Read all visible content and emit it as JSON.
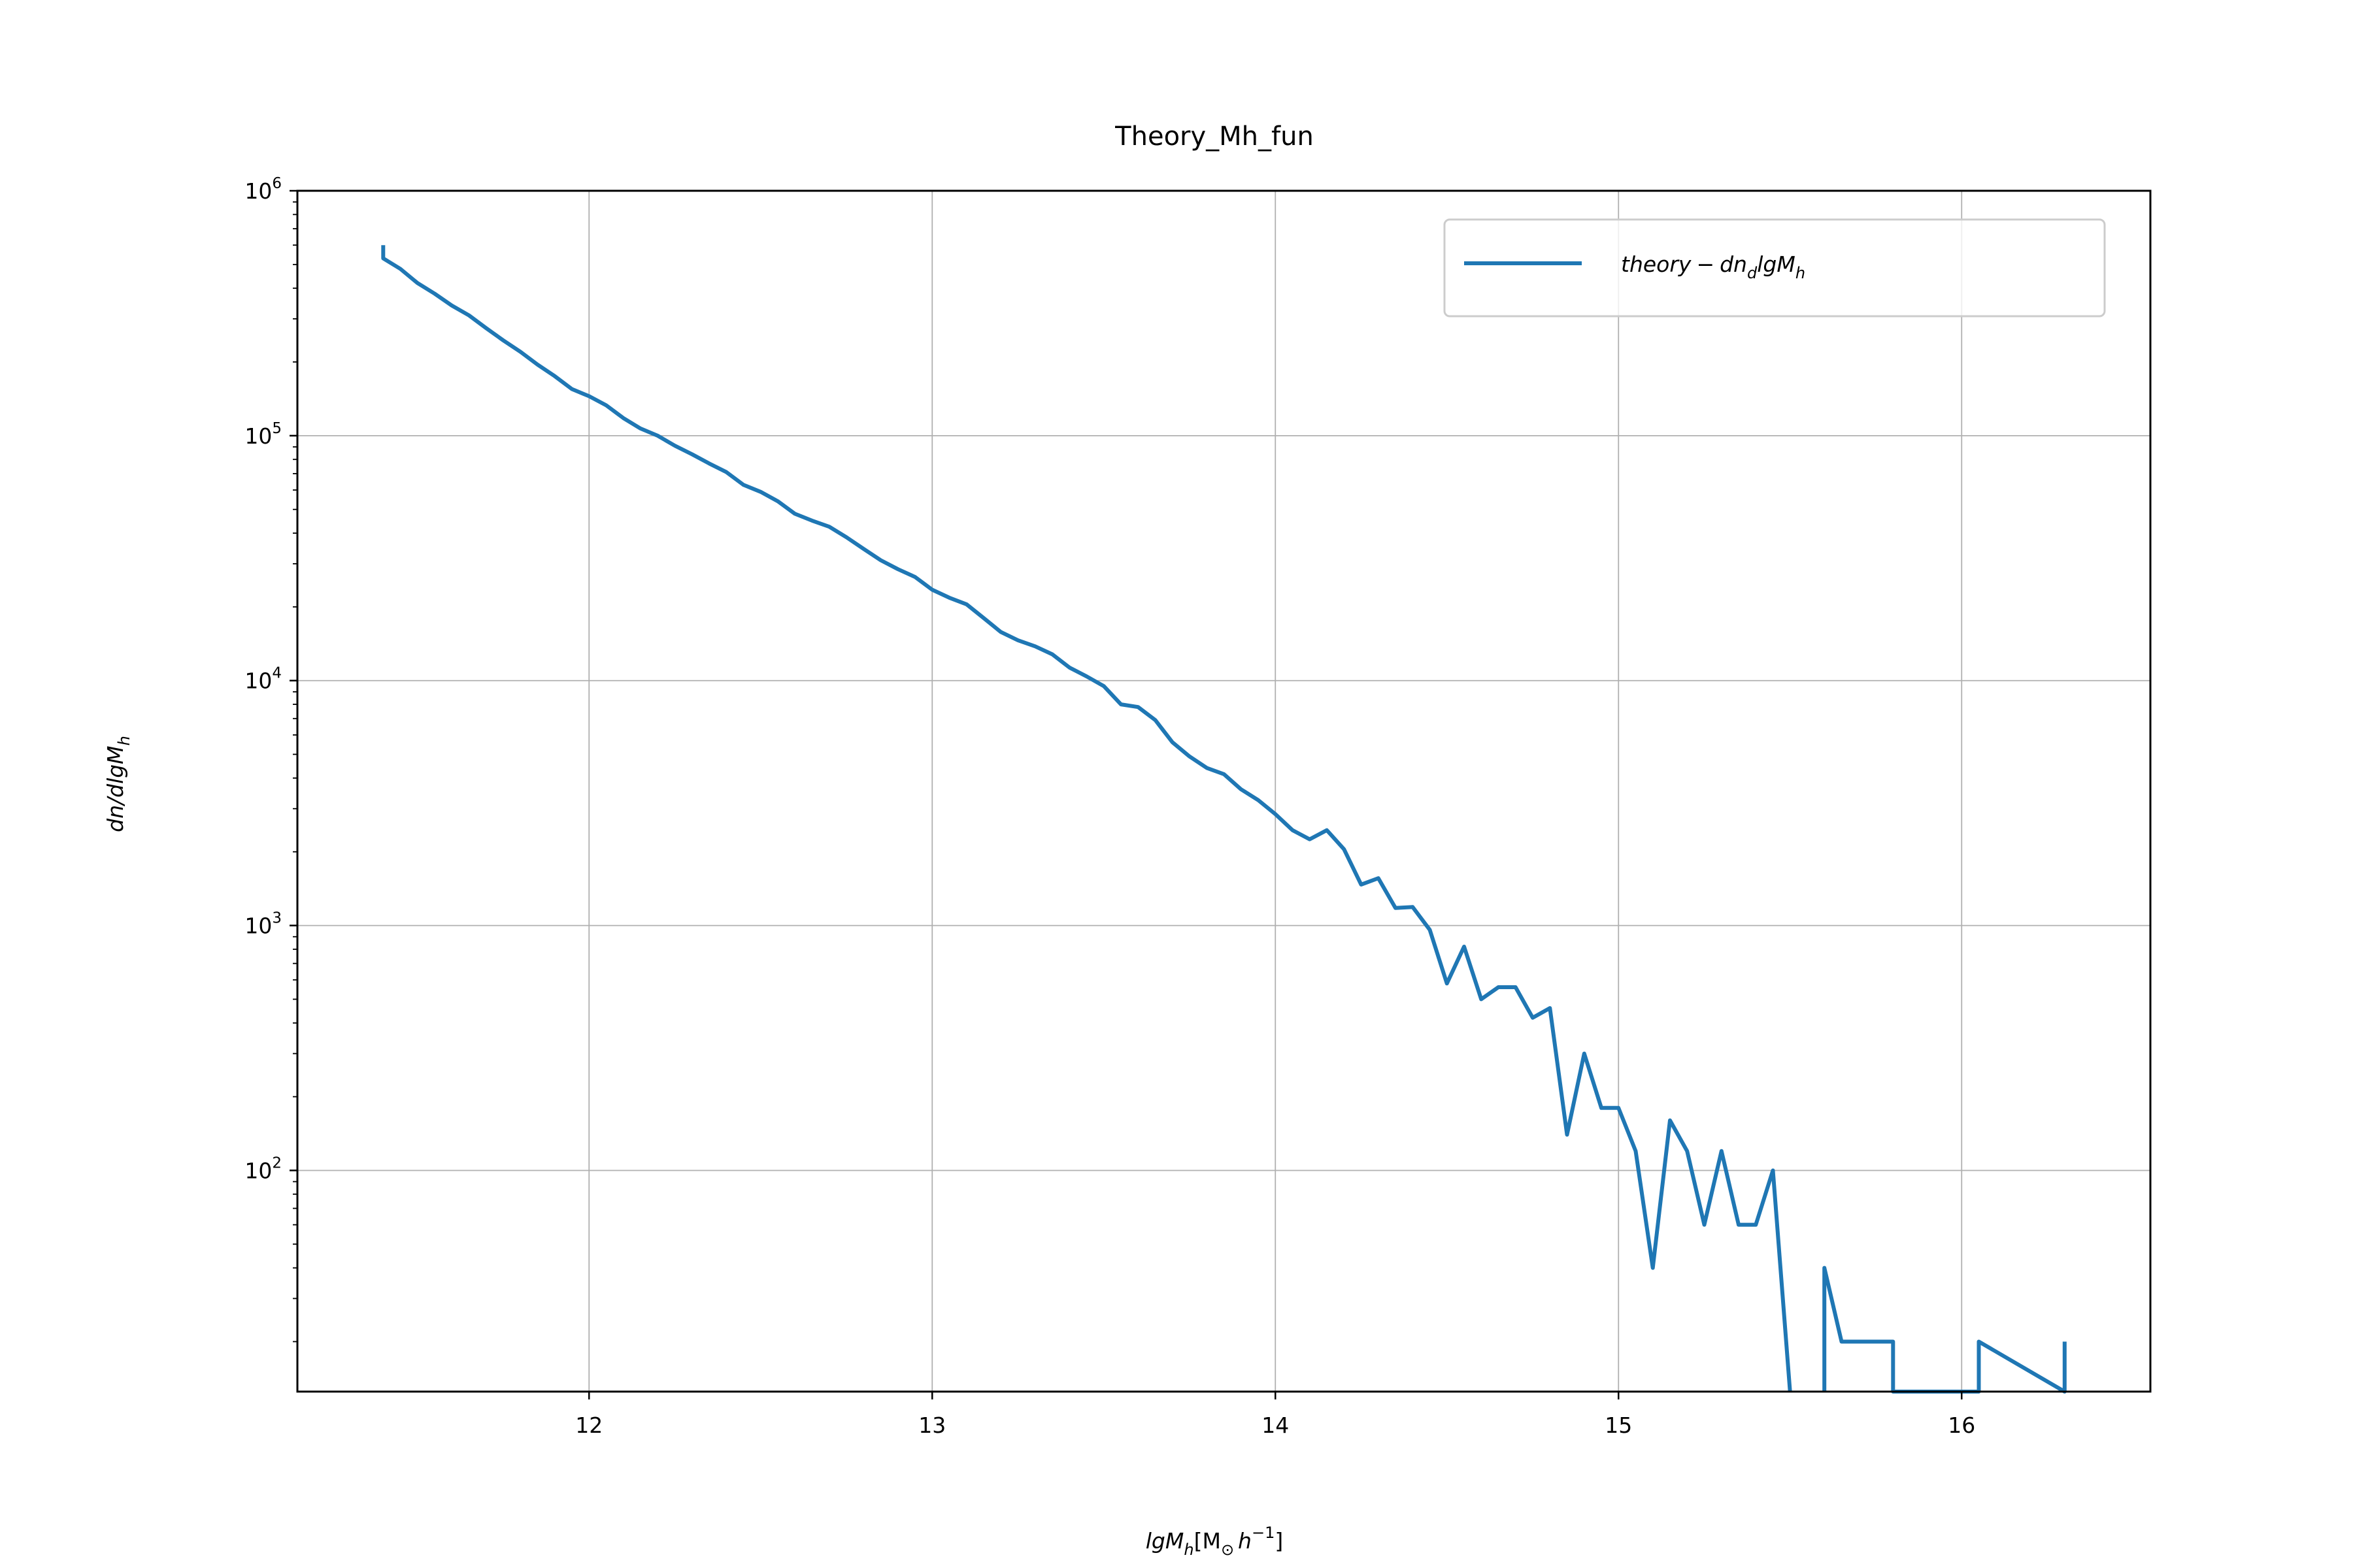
{
  "chart_data": {
    "type": "line",
    "title": "Theory_Mh_fun",
    "xlabel": "lgM_h[M_⊙h^-1]",
    "ylabel": "dn/dlgM_h",
    "yscale": "log",
    "xlim": [
      11.15,
      16.55
    ],
    "ylim": [
      12.5,
      1000000
    ],
    "grid": true,
    "legend_position": "top-right",
    "x_ticks": [
      12,
      13,
      14,
      15,
      16
    ],
    "y_ticks": [
      100,
      1000,
      10000,
      100000,
      1000000
    ],
    "line_color": "#1f77b4",
    "series": [
      {
        "name": "theory − dn_d lgM_h",
        "x": [
          11.4,
          11.4,
          11.45,
          11.5,
          11.55,
          11.6,
          11.65,
          11.7,
          11.75,
          11.8,
          11.85,
          11.9,
          11.95,
          12.0,
          12.05,
          12.1,
          12.15,
          12.2,
          12.25,
          12.3,
          12.35,
          12.4,
          12.45,
          12.5,
          12.55,
          12.6,
          12.65,
          12.7,
          12.75,
          12.8,
          12.85,
          12.9,
          12.95,
          13.0,
          13.05,
          13.1,
          13.15,
          13.2,
          13.25,
          13.3,
          13.35,
          13.4,
          13.45,
          13.5,
          13.55,
          13.6,
          13.65,
          13.7,
          13.75,
          13.8,
          13.85,
          13.9,
          13.95,
          14.0,
          14.05,
          14.1,
          14.15,
          14.2,
          14.25,
          14.3,
          14.35,
          14.4,
          14.45,
          14.5,
          14.55,
          14.6,
          14.65,
          14.7,
          14.75,
          14.8,
          14.85,
          14.9,
          14.95,
          15.0,
          15.05,
          15.1,
          15.15,
          15.2,
          15.25,
          15.3,
          15.35,
          15.4,
          15.45,
          15.5,
          15.5,
          15.6,
          15.6,
          15.65,
          15.7,
          15.75,
          15.8,
          15.8,
          16.05,
          16.05,
          16.3,
          16.3
        ],
        "y": [
          600000,
          530000,
          480000,
          420000,
          380000,
          340000,
          310000,
          275000,
          245000,
          220000,
          195000,
          175000,
          155000,
          145000,
          133000,
          118000,
          107000,
          100000,
          91000,
          84000,
          77000,
          71000,
          63000,
          59000,
          54000,
          48000,
          45000,
          42500,
          38500,
          34500,
          31000,
          28500,
          26500,
          23500,
          21800,
          20500,
          18000,
          15800,
          14600,
          13800,
          12800,
          11300,
          10400,
          9500,
          8000,
          7800,
          6900,
          5600,
          4900,
          4400,
          4150,
          3600,
          3250,
          2850,
          2450,
          2250,
          2450,
          2050,
          1470,
          1560,
          1180,
          1190,
          960,
          580,
          820,
          500,
          560,
          560,
          420,
          460,
          140,
          300,
          180,
          180,
          120,
          40,
          160,
          120,
          60,
          120,
          60,
          60,
          100,
          12.5,
          null,
          12.5,
          40,
          20,
          20,
          20,
          20,
          12.5,
          12.5,
          20,
          12.5,
          20
        ]
      }
    ]
  }
}
